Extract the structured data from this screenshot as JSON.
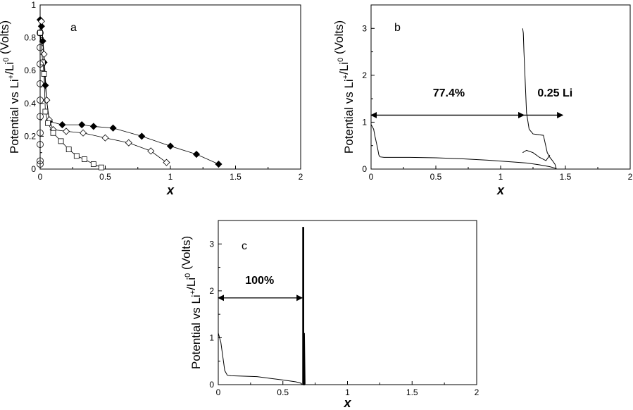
{
  "chart_data": [
    {
      "panel": "a",
      "type": "scatter",
      "label": "a",
      "xlabel": "x",
      "ylabel": {
        "main": "Potential vs  Li",
        "sup1": "+",
        "mid": "/Li",
        "sup2": "0",
        "end": " (Volts)"
      },
      "xlim": [
        0,
        2
      ],
      "ylim": [
        0,
        1
      ],
      "xticks": [
        0,
        0.5,
        1,
        1.5,
        2
      ],
      "xtick_labels": [
        "0",
        "0.5",
        "1",
        "1.5",
        "2"
      ],
      "yticks": [
        0,
        0.2,
        0.4,
        0.6,
        0.8,
        1
      ],
      "ytick_labels": [
        "0",
        "0.2",
        "0.4",
        "0.6",
        "0.8",
        "1"
      ],
      "series": [
        {
          "marker": "filled-diamond",
          "x": [
            0.0,
            0.01,
            0.02,
            0.03,
            0.04,
            0.05,
            0.07,
            0.17,
            0.32,
            0.41,
            0.56,
            0.78,
            1.0,
            1.2,
            1.37
          ],
          "y": [
            0.91,
            0.87,
            0.78,
            0.65,
            0.51,
            0.42,
            0.29,
            0.27,
            0.27,
            0.26,
            0.25,
            0.2,
            0.14,
            0.09,
            0.03
          ]
        },
        {
          "marker": "open-diamond",
          "x": [
            0.01,
            0.03,
            0.05,
            0.07,
            0.1,
            0.2,
            0.33,
            0.5,
            0.68,
            0.85,
            0.97
          ],
          "y": [
            0.9,
            0.7,
            0.42,
            0.3,
            0.24,
            0.23,
            0.22,
            0.19,
            0.16,
            0.11,
            0.04
          ]
        },
        {
          "marker": "open-square",
          "x": [
            0.0,
            0.02,
            0.03,
            0.04,
            0.06,
            0.1,
            0.16,
            0.22,
            0.28,
            0.34,
            0.41,
            0.47
          ],
          "y": [
            0.83,
            0.65,
            0.58,
            0.35,
            0.28,
            0.22,
            0.17,
            0.12,
            0.08,
            0.06,
            0.03,
            0.01
          ]
        },
        {
          "marker": "open-circle",
          "x": [
            0.0,
            0.0,
            0.0,
            0.0,
            0.0,
            0.0,
            0.0,
            0.0,
            0.0,
            0.0
          ],
          "y": [
            0.83,
            0.74,
            0.64,
            0.52,
            0.42,
            0.32,
            0.22,
            0.15,
            0.05,
            0.03
          ]
        }
      ]
    },
    {
      "panel": "b",
      "type": "line",
      "label": "b",
      "xlabel": "x",
      "ylabel": {
        "main": "Potential vs  Li",
        "sup1": "+",
        "mid": "/Li",
        "sup2": "0",
        "end": " (Volts)"
      },
      "xlim": [
        0,
        2
      ],
      "ylim": [
        0,
        3.5
      ],
      "xticks": [
        0,
        0.5,
        1,
        1.5,
        2
      ],
      "xtick_labels": [
        "0",
        "0.5",
        "1",
        "1.5",
        "2"
      ],
      "yticks": [
        0,
        1,
        2,
        3
      ],
      "ytick_labels": [
        "0",
        "1",
        "2",
        "3"
      ],
      "series": [
        {
          "x": [
            0.0,
            0.02,
            0.03,
            0.05,
            0.06,
            0.07,
            0.1,
            0.3,
            0.5,
            0.7,
            0.9,
            1.1,
            1.2,
            1.3,
            1.38,
            1.42,
            1.43
          ],
          "y": [
            0.95,
            0.85,
            0.7,
            0.45,
            0.3,
            0.26,
            0.25,
            0.25,
            0.24,
            0.22,
            0.19,
            0.15,
            0.13,
            0.09,
            0.05,
            0.02,
            0.0
          ]
        },
        {
          "x": [
            1.17,
            1.175,
            1.18,
            1.2,
            1.22,
            1.25,
            1.3,
            1.33,
            1.34,
            1.36,
            1.38,
            1.4,
            1.42,
            1.43
          ],
          "y": [
            3.0,
            2.9,
            2.5,
            1.2,
            0.85,
            0.75,
            0.73,
            0.72,
            0.6,
            0.35,
            0.25,
            0.18,
            0.1,
            0.0
          ]
        },
        {
          "x": [
            1.17,
            1.2,
            1.25,
            1.3,
            1.35,
            1.38
          ],
          "y": [
            0.35,
            0.4,
            0.35,
            0.25,
            0.18,
            0.3
          ]
        }
      ],
      "annotations": [
        {
          "text": "77.4%",
          "x": 0.6,
          "y": 1.55
        },
        {
          "text": "0.25 Li",
          "x": 1.42,
          "y": 1.55
        }
      ],
      "arrows": [
        {
          "x1": 0.0,
          "x2": 1.18,
          "y": 1.15,
          "heads": "both"
        },
        {
          "x1": 1.18,
          "x2": 1.48,
          "y": 1.15,
          "heads": "right"
        }
      ]
    },
    {
      "panel": "c",
      "type": "line",
      "label": "c",
      "xlabel": "x",
      "ylabel": {
        "main": "Potential vs  Li",
        "sup1": "+",
        "mid": "/Li",
        "sup2": "0",
        "end": " (Volts)"
      },
      "xlim": [
        0,
        2
      ],
      "ylim": [
        0,
        3.5
      ],
      "xticks": [
        0,
        0.5,
        1,
        1.5,
        2
      ],
      "xtick_labels": [
        "0",
        "0.5",
        "1",
        "1.5",
        "2"
      ],
      "yticks": [
        0,
        1,
        2,
        3
      ],
      "ytick_labels": [
        "0",
        "1",
        "2",
        "3"
      ],
      "series": [
        {
          "x": [
            0.0,
            0.02,
            0.03,
            0.05,
            0.07,
            0.1,
            0.3,
            0.5,
            0.6,
            0.64,
            0.65
          ],
          "y": [
            1.1,
            0.9,
            0.7,
            0.3,
            0.2,
            0.19,
            0.17,
            0.1,
            0.06,
            0.03,
            0.0
          ]
        },
        {
          "x": [
            0.655,
            0.655,
            0.66,
            0.66,
            0.665,
            0.665,
            0.67
          ],
          "y": [
            0.0,
            3.35,
            3.35,
            0.0,
            0.0,
            1.1,
            0.0
          ]
        }
      ],
      "annotations": [
        {
          "text": "100%",
          "x": 0.32,
          "y": 2.15
        }
      ],
      "arrows": [
        {
          "x1": 0.0,
          "x2": 0.65,
          "y": 1.85,
          "heads": "both"
        }
      ]
    }
  ]
}
